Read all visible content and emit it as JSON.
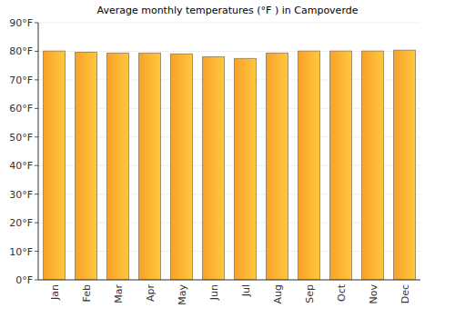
{
  "chart_data": {
    "type": "bar",
    "title": "Average monthly temperatures (°F ) in Campoverde",
    "categories": [
      "Jan",
      "Feb",
      "Mar",
      "Apr",
      "May",
      "Jun",
      "Jul",
      "Aug",
      "Sep",
      "Oct",
      "Nov",
      "Dec"
    ],
    "values": [
      80.1,
      79.7,
      79.4,
      79.4,
      79.1,
      78.1,
      77.5,
      79.4,
      80.1,
      80.1,
      80.1,
      80.4
    ],
    "color": "#f9a12a",
    "ylim": [
      0,
      90
    ],
    "yticks": [
      {
        "value": 0,
        "label": "0°F"
      },
      {
        "value": 10,
        "label": "10°F"
      },
      {
        "value": 20,
        "label": "20°F"
      },
      {
        "value": 30,
        "label": "30°F"
      },
      {
        "value": 40,
        "label": "40°F"
      },
      {
        "value": 50,
        "label": "50°F"
      },
      {
        "value": 60,
        "label": "60°F"
      },
      {
        "value": 70,
        "label": "70°F"
      },
      {
        "value": 80,
        "label": "80°F"
      },
      {
        "value": 90,
        "label": "90°F"
      }
    ],
    "grid": true
  }
}
